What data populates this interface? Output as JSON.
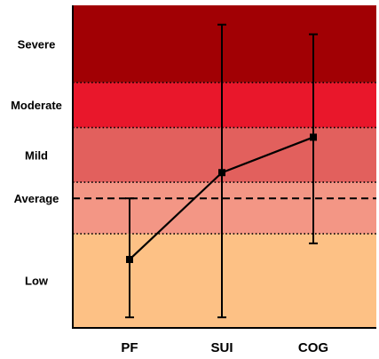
{
  "chart_data": {
    "type": "line",
    "title": "",
    "xlabel": "",
    "ylabel": "",
    "categories": [
      "PF",
      "SUI",
      "COG"
    ],
    "ylim": [
      0,
      100
    ],
    "grid": false,
    "legend": "none",
    "series": [
      {
        "values": [
          21,
          48,
          59
        ],
        "error_low": [
          3,
          3,
          26
        ],
        "error_high": [
          40,
          94,
          91
        ],
        "color": "#000000"
      }
    ],
    "bands": [
      {
        "label": "Low",
        "from": 0,
        "to": 29,
        "color": "#FDC185"
      },
      {
        "label": "",
        "from": 29,
        "to": 45,
        "color": "#F39685"
      },
      {
        "label": "Mild",
        "from": 45,
        "to": 62,
        "color": "#E2605D"
      },
      {
        "label": "Moderate",
        "from": 62,
        "to": 76,
        "color": "#E9172B"
      },
      {
        "label": "Severe",
        "from": 76,
        "to": 100,
        "color": "#A10004"
      }
    ],
    "reference_lines": [
      {
        "label": "Average",
        "value": 40,
        "style": "dashed"
      },
      {
        "value": 29,
        "style": "dotted"
      },
      {
        "value": 45,
        "style": "dotted"
      },
      {
        "value": 62,
        "style": "dotted"
      },
      {
        "value": 76,
        "style": "dotted"
      }
    ]
  }
}
